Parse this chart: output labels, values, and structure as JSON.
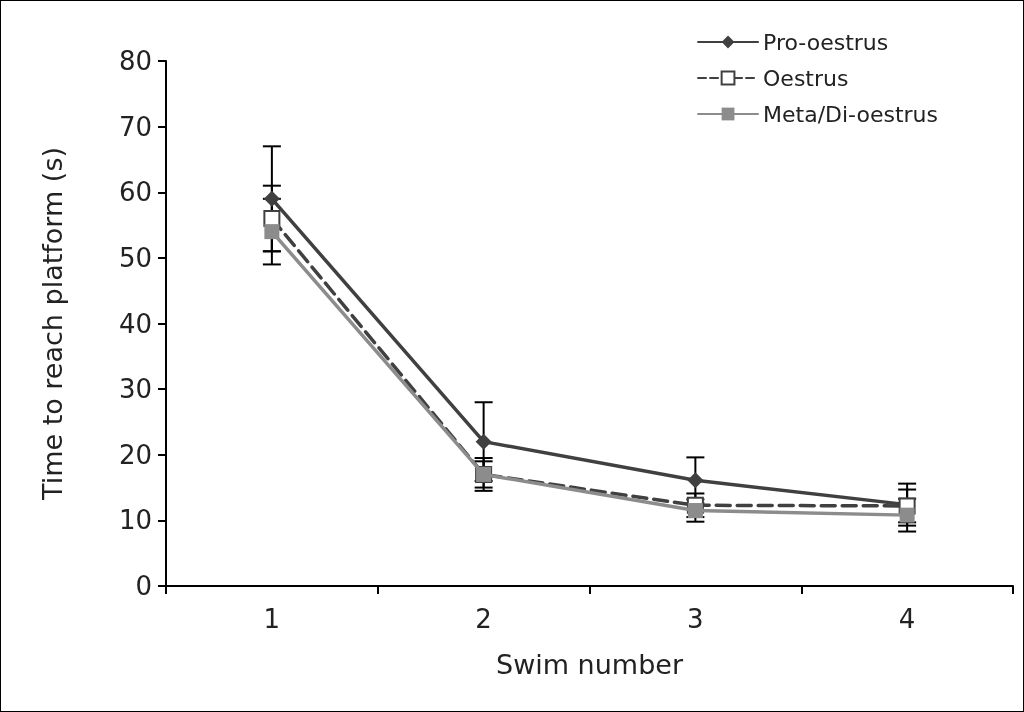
{
  "chart_data": {
    "type": "line",
    "xlabel": "Swim number",
    "ylabel": "Time to reach platform (s)",
    "categories": [
      "1",
      "2",
      "3",
      "4"
    ],
    "ylim": [
      0,
      80
    ],
    "yticks": [
      0,
      10,
      20,
      30,
      40,
      50,
      60,
      70,
      80
    ],
    "grid": false,
    "legend": "top right",
    "series": [
      {
        "name": "Pro-oestrus",
        "color": "#404040",
        "marker": "diamond",
        "line_style": "solid",
        "values": [
          59,
          22,
          16.1,
          12.4
        ],
        "errors": [
          8,
          6,
          3.5,
          3.2
        ]
      },
      {
        "name": "Oestrus",
        "color": "#404040",
        "marker": "square",
        "line_style": "dashed",
        "values": [
          56,
          17,
          12.3,
          12.2
        ],
        "errors": [
          5,
          2,
          1.8,
          2.5
        ]
      },
      {
        "name": "Meta/Di-oestrus",
        "color": "#8c8c8c",
        "marker": "square",
        "line_style": "solid",
        "values": [
          54,
          17,
          11.5,
          10.8
        ],
        "errors": [
          5,
          2.5,
          1.7,
          2.5
        ]
      }
    ]
  }
}
